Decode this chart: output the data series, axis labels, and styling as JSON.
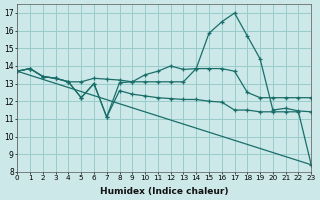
{
  "xlabel": "Humidex (Indice chaleur)",
  "xlim": [
    0,
    23
  ],
  "ylim": [
    8,
    17.5
  ],
  "yticks": [
    8,
    9,
    10,
    11,
    12,
    13,
    14,
    15,
    16,
    17
  ],
  "xticks": [
    0,
    1,
    2,
    3,
    4,
    5,
    6,
    7,
    8,
    9,
    10,
    11,
    12,
    13,
    14,
    15,
    16,
    17,
    18,
    19,
    20,
    21,
    22,
    23
  ],
  "bg_color": "#cce8e8",
  "grid_color": "#99cccc",
  "line_color": "#1a6e6a",
  "curve1": {
    "x": [
      0,
      1,
      2,
      3,
      4,
      5,
      6,
      7,
      8,
      9,
      10,
      11,
      12,
      13,
      14,
      15,
      16,
      17,
      18,
      19,
      20,
      21,
      22,
      23
    ],
    "y": [
      13.7,
      13.85,
      13.4,
      13.3,
      13.1,
      12.2,
      13.0,
      11.1,
      13.05,
      13.1,
      13.5,
      13.7,
      14.0,
      13.8,
      13.85,
      15.85,
      16.5,
      17.0,
      15.7,
      14.4,
      11.5,
      11.6,
      11.45,
      11.4
    ]
  },
  "curve2": {
    "x": [
      0,
      1,
      2,
      3,
      4,
      5,
      6,
      7,
      8,
      9,
      10,
      11,
      12,
      13,
      14,
      15,
      16,
      17,
      18,
      19,
      20,
      21,
      22,
      23
    ],
    "y": [
      13.7,
      13.85,
      13.4,
      13.3,
      13.1,
      13.1,
      13.3,
      13.25,
      13.2,
      13.1,
      13.1,
      13.1,
      13.1,
      13.1,
      13.85,
      13.85,
      13.85,
      13.7,
      12.5,
      12.2,
      12.2,
      12.2,
      12.2,
      12.2
    ]
  },
  "curve3": {
    "x": [
      0,
      23
    ],
    "y": [
      13.7,
      8.4
    ]
  },
  "curve4": {
    "x": [
      0,
      1,
      2,
      3,
      4,
      5,
      6,
      7,
      8,
      9,
      10,
      11,
      12,
      13,
      14,
      15,
      16,
      17,
      18,
      19,
      20,
      21,
      22,
      23
    ],
    "y": [
      13.7,
      13.85,
      13.4,
      13.3,
      13.1,
      12.2,
      13.0,
      11.1,
      12.6,
      12.4,
      12.3,
      12.2,
      12.15,
      12.1,
      12.1,
      12.0,
      11.95,
      11.5,
      11.5,
      11.4,
      11.4,
      11.4,
      11.4,
      8.4
    ]
  }
}
